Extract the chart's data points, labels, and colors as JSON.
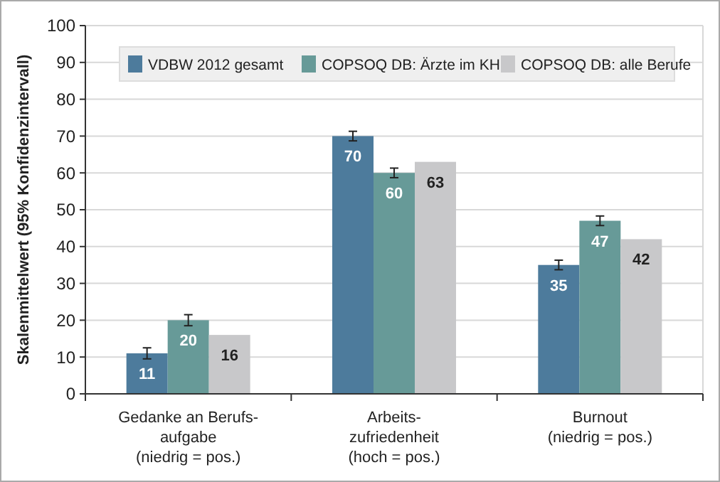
{
  "chart_data": {
    "type": "bar",
    "ylabel": "Skalenmittelwert (95% Konfidenzintervall)",
    "categories": [
      "Gedanke an Berufs-\naufgabe\n(niedrig = pos.)",
      "Arbeits-\nzufriedenheit\n(hoch = pos.)",
      "Burnout\n(niedrig = pos.)"
    ],
    "series": [
      {
        "name": "VDBW 2012 gesamt",
        "color": "#4d7b9c",
        "values": [
          11,
          70,
          35
        ],
        "errors": [
          1.5,
          1.3,
          1.3
        ]
      },
      {
        "name": "COPSOQ DB: Ärzte im KH",
        "color": "#679a98",
        "values": [
          20,
          60,
          47
        ],
        "errors": [
          1.5,
          1.3,
          1.3
        ]
      },
      {
        "name": "COPSOQ DB: alle Berufe",
        "color": "#c8c8ca",
        "values": [
          16,
          63,
          42
        ]
      }
    ],
    "ylim": [
      0,
      100
    ],
    "yticks": [
      0,
      10,
      20,
      30,
      40,
      50,
      60,
      70,
      80,
      90,
      100
    ],
    "grid": "y",
    "legend": "top",
    "data_labels": true
  }
}
